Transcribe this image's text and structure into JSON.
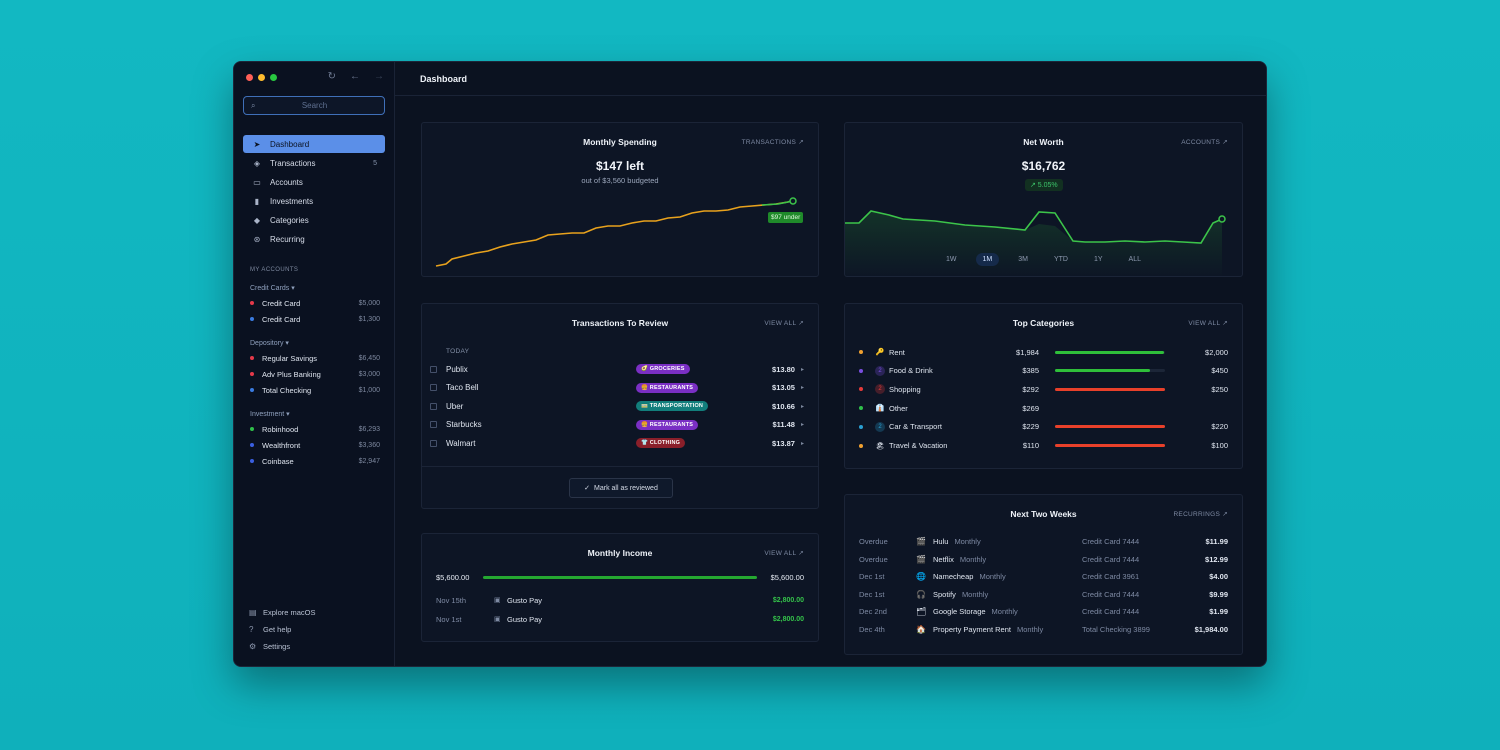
{
  "sidebar": {
    "search_placeholder": "Search",
    "nav": [
      {
        "label": "Dashboard",
        "icon": "navigation-arrow-icon",
        "count": ""
      },
      {
        "label": "Transactions",
        "icon": "stack-icon",
        "count": "5"
      },
      {
        "label": "Accounts",
        "icon": "card-icon",
        "count": ""
      },
      {
        "label": "Investments",
        "icon": "bar-chart-icon",
        "count": ""
      },
      {
        "label": "Categories",
        "icon": "tag-icon",
        "count": ""
      },
      {
        "label": "Recurring",
        "icon": "recurring-icon",
        "count": ""
      }
    ],
    "section_label": "MY ACCOUNTS",
    "groups": [
      {
        "title": "Credit Cards ▾",
        "accounts": [
          {
            "name": "Credit Card",
            "amount": "$5,000",
            "color": "#e5394a"
          },
          {
            "name": "Credit Card",
            "amount": "$1,300",
            "color": "#3a7be0"
          }
        ]
      },
      {
        "title": "Depository ▾",
        "accounts": [
          {
            "name": "Regular Savings",
            "amount": "$6,450",
            "color": "#e5394a"
          },
          {
            "name": "Adv Plus Banking",
            "amount": "$3,000",
            "color": "#e5394a"
          },
          {
            "name": "Total Checking",
            "amount": "$1,000",
            "color": "#3a7be0"
          }
        ]
      },
      {
        "title": "Investment ▾",
        "accounts": [
          {
            "name": "Robinhood",
            "amount": "$6,293",
            "color": "#2fbf4a"
          },
          {
            "name": "Wealthfront",
            "amount": "$3,360",
            "color": "#3a5fe0"
          },
          {
            "name": "Coinbase",
            "amount": "$2,947",
            "color": "#3a5fe0"
          }
        ]
      }
    ],
    "footer": [
      {
        "label": "Explore macOS",
        "icon": "book-icon"
      },
      {
        "label": "Get help",
        "icon": "help-icon"
      },
      {
        "label": "Settings",
        "icon": "gear-icon"
      }
    ]
  },
  "header": {
    "title": "Dashboard"
  },
  "spending": {
    "title": "Monthly Spending",
    "link": "TRANSACTIONS ↗",
    "big": "$147 left",
    "sub": "out of $3,560 budgeted",
    "pill": "$97 under"
  },
  "networth": {
    "title": "Net Worth",
    "link": "ACCOUNTS ↗",
    "big": "$16,762",
    "badge": "↗ 5.05%",
    "ranges": [
      "1W",
      "1M",
      "3M",
      "YTD",
      "1Y",
      "ALL"
    ],
    "selected_range": "1M"
  },
  "review": {
    "title": "Transactions To Review",
    "link": "VIEW ALL ↗",
    "today": "TODAY",
    "rows": [
      {
        "name": "Publix",
        "tag": "🥑 GROCERIES",
        "tag_color": "#7a2fc4",
        "amount": "$13.80"
      },
      {
        "name": "Taco Bell",
        "tag": "🍔 RESTAURANTS",
        "tag_color": "#7a2fc4",
        "amount": "$13.05"
      },
      {
        "name": "Uber",
        "tag": "🚃 TRANSPORTATION",
        "tag_color": "#127e7c",
        "amount": "$10.66"
      },
      {
        "name": "Starbucks",
        "tag": "🍔 RESTAURANTS",
        "tag_color": "#7a2fc4",
        "amount": "$11.48"
      },
      {
        "name": "Walmart",
        "tag": "👕 CLOTHING",
        "tag_color": "#8a1f2a",
        "amount": "$13.87"
      }
    ],
    "button": "Mark all as reviewed"
  },
  "income": {
    "title": "Monthly Income",
    "link": "VIEW ALL ↗",
    "left": "$5,600.00",
    "right": "$5,600.00",
    "rows": [
      {
        "date": "Nov 15th",
        "name": "Gusto Pay",
        "amount": "$2,800.00"
      },
      {
        "date": "Nov 1st",
        "name": "Gusto Pay",
        "amount": "$2,800.00"
      }
    ]
  },
  "categories": {
    "title": "Top Categories",
    "link": "VIEW ALL ↗",
    "rows": [
      {
        "dot": "#f0a030",
        "icon": "🔑",
        "name": "Rent",
        "spent": "$1,984",
        "budget": "$2,000",
        "fill": 0.99,
        "bar": "#2fbf3a"
      },
      {
        "dot": "#7a4fe0",
        "icon": "2",
        "name": "Food & Drink",
        "spent": "$385",
        "budget": "$450",
        "fill": 0.86,
        "bar": "#2fbf3a"
      },
      {
        "dot": "#e53a3a",
        "icon": "2",
        "name": "Shopping",
        "spent": "$292",
        "budget": "$250",
        "fill": 1.0,
        "bar": "#e8402a"
      },
      {
        "dot": "#2fbf4a",
        "icon": "👔",
        "name": "Other",
        "spent": "$269",
        "budget": "",
        "fill": 0,
        "bar": "#2fbf3a"
      },
      {
        "dot": "#2a9fd0",
        "icon": "2",
        "name": "Car & Transport",
        "spent": "$229",
        "budget": "$220",
        "fill": 1.0,
        "bar": "#e8402a"
      },
      {
        "dot": "#f0a030",
        "icon": "🏖",
        "name": "Travel & Vacation",
        "spent": "$110",
        "budget": "$100",
        "fill": 1.0,
        "bar": "#e8402a"
      }
    ]
  },
  "upcoming": {
    "title": "Next Two Weeks",
    "link": "RECURRINGS ↗",
    "rows": [
      {
        "when": "Overdue",
        "icon": "🎬",
        "name": "Hulu",
        "freq": "Monthly",
        "account": "Credit Card 7444",
        "amount": "$11.99"
      },
      {
        "when": "Overdue",
        "icon": "🎬",
        "name": "Netflix",
        "freq": "Monthly",
        "account": "Credit Card 7444",
        "amount": "$12.99"
      },
      {
        "when": "Dec 1st",
        "icon": "🌐",
        "name": "Namecheap",
        "freq": "Monthly",
        "account": "Credit Card 3961",
        "amount": "$4.00"
      },
      {
        "when": "Dec 1st",
        "icon": "🎧",
        "name": "Spotify",
        "freq": "Monthly",
        "account": "Credit Card 7444",
        "amount": "$9.99"
      },
      {
        "when": "Dec 2nd",
        "icon": "🗂",
        "name": "Google Storage",
        "freq": "Monthly",
        "account": "Credit Card 7444",
        "amount": "$1.99"
      },
      {
        "when": "Dec 4th",
        "icon": "🏠",
        "name": "Property Payment Rent",
        "freq": "Monthly",
        "account": "Total Checking 3899",
        "amount": "$1,984.00"
      }
    ]
  },
  "colors": {
    "accent": "#5b8fe8",
    "positive": "#2fbf3a",
    "negative": "#e8402a",
    "spending_line": "#e8a21d"
  }
}
